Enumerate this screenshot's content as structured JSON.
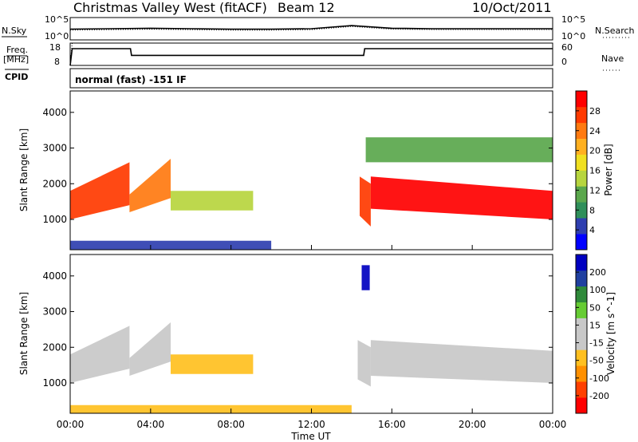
{
  "header": {
    "station_title": "Christmas Valley West (fitACF)",
    "beam_label": "Beam 12",
    "date_label": "10/Oct/2011"
  },
  "summary_panel": {
    "nsky_label": "N.Sky",
    "nsearch_label": "N.Search",
    "noise_tick_top": "10^5",
    "noise_tick_bottom": "10^0",
    "freq_label": "Freq.",
    "freq_unit": "[MHz]",
    "freq_tick_top": "18",
    "freq_tick_bottom": "8",
    "nave_label": "Nave",
    "nave_tick_top": "60",
    "nave_tick_bottom": "0",
    "cpid_label": "CPID",
    "cpid_value": "normal (fast) -151 IF"
  },
  "colors": {
    "power": [
      "#0000ff",
      "#2f3fb0",
      "#2f8f5a",
      "#5aa74c",
      "#b7d53e",
      "#f0e020",
      "#ffb020",
      "#ff7a10",
      "#ff3a00",
      "#ff0000"
    ],
    "velocity": [
      "#ff0000",
      "#ff4000",
      "#ff9000",
      "#ffc020",
      "#c8c8c8",
      "#c8c8c8",
      "#66cc33",
      "#2f8a3a",
      "#2040a0",
      "#0000c0"
    ],
    "ground_scatter": "#c8c8c8"
  },
  "chart_data": [
    {
      "type": "line",
      "panel": "noise",
      "x": [
        0,
        2,
        4,
        6,
        8,
        10,
        12,
        14,
        16,
        18,
        20,
        22,
        24
      ],
      "series": [
        {
          "name": "N.Sky",
          "values": [
            2.4,
            2.5,
            2.6,
            2.5,
            2.4,
            2.4,
            2.5,
            3.2,
            2.6,
            2.5,
            2.5,
            2.5,
            2.5
          ]
        },
        {
          "name": "N.Search",
          "values": [
            2.2,
            2.3,
            2.4,
            2.3,
            2.2,
            2.2,
            2.3,
            3.0,
            2.4,
            2.3,
            2.3,
            2.3,
            2.3
          ]
        }
      ],
      "ylim": [
        0,
        5
      ]
    },
    {
      "type": "line",
      "panel": "frequency",
      "x": [
        0,
        0.1,
        3.0,
        3.05,
        14.6,
        14.65,
        24
      ],
      "series": [
        {
          "name": "Freq.",
          "values": [
            8,
            15.5,
            15.5,
            12.5,
            12.5,
            15.5,
            15.5
          ]
        },
        {
          "name": "Nave",
          "values": [
            4,
            24,
            24,
            20,
            20,
            24,
            24
          ]
        }
      ],
      "ylim": [
        8,
        18
      ]
    },
    {
      "type": "heatmap",
      "panel": "power",
      "ylabel": "Slant Range [km]",
      "ylim": [
        150,
        4600
      ],
      "y_ticks": [
        "1000",
        "2000",
        "3000",
        "4000"
      ],
      "colorbar": {
        "label": "Power [dB]",
        "ticks": [
          "4",
          "8",
          "12",
          "16",
          "20",
          "24",
          "28"
        ],
        "range": [
          0,
          32
        ]
      },
      "regions": [
        {
          "t0": 0.0,
          "t1": 2.95,
          "r_low0": 1000,
          "r_low1": 1400,
          "r_high0": 1800,
          "r_high1": 2600,
          "value": 28
        },
        {
          "t0": 2.95,
          "t1": 5.0,
          "r_low0": 1200,
          "r_low1": 1600,
          "r_high0": 1700,
          "r_high1": 2700,
          "value": 24
        },
        {
          "t0": 5.0,
          "t1": 9.1,
          "r_low0": 1250,
          "r_low1": 1250,
          "r_high0": 1800,
          "r_high1": 1800,
          "value": 14
        },
        {
          "t0": 14.4,
          "t1": 14.95,
          "r_low0": 1100,
          "r_low1": 800,
          "r_high0": 2200,
          "r_high1": 2000,
          "value": 26
        },
        {
          "t0": 14.95,
          "t1": 24.0,
          "r_low0": 1300,
          "r_low1": 1000,
          "r_high0": 2200,
          "r_high1": 1800,
          "value": 30
        },
        {
          "t0": 0.0,
          "t1": 10.0,
          "r_low0": 150,
          "r_low1": 150,
          "r_high0": 400,
          "r_high1": 400,
          "value": 6
        },
        {
          "t0": 14.7,
          "t1": 24.0,
          "r_low0": 2600,
          "r_low1": 2600,
          "r_high0": 3300,
          "r_high1": 3300,
          "value": 10
        }
      ]
    },
    {
      "type": "heatmap",
      "panel": "velocity",
      "ylabel": "Slant Range [km]",
      "xlabel": "Time UT",
      "ylim": [
        150,
        4600
      ],
      "y_ticks": [
        "1000",
        "2000",
        "3000",
        "4000"
      ],
      "x_ticks": [
        "00:00",
        "04:00",
        "08:00",
        "12:00",
        "16:00",
        "20:00",
        "00:00"
      ],
      "xlim": [
        0,
        24
      ],
      "colorbar": {
        "label": "Velocity [m s^-1]",
        "ticks": [
          "-200",
          "-100",
          "-50",
          "-15",
          "15",
          "50",
          "100",
          "200"
        ],
        "range": [
          -250,
          250
        ]
      },
      "regions": [
        {
          "t0": 0.0,
          "t1": 2.95,
          "r_low0": 1000,
          "r_low1": 1400,
          "r_high0": 1800,
          "r_high1": 2600,
          "value": 0
        },
        {
          "t0": 2.95,
          "t1": 5.0,
          "r_low0": 1200,
          "r_low1": 1600,
          "r_high0": 1700,
          "r_high1": 2700,
          "value": 0
        },
        {
          "t0": 5.0,
          "t1": 9.1,
          "r_low0": 1250,
          "r_low1": 1250,
          "r_high0": 1800,
          "r_high1": 1800,
          "value": -60
        },
        {
          "t0": 14.3,
          "t1": 14.95,
          "r_low0": 1100,
          "r_low1": 900,
          "r_high0": 2200,
          "r_high1": 2000,
          "value": 40
        },
        {
          "t0": 14.95,
          "t1": 24.0,
          "r_low0": 1200,
          "r_low1": 1000,
          "r_high0": 2200,
          "r_high1": 1900,
          "value": 0
        },
        {
          "t0": 0.0,
          "t1": 14.0,
          "r_low0": 150,
          "r_low1": 150,
          "r_high0": 380,
          "r_high1": 380,
          "value": -60
        },
        {
          "t0": 14.5,
          "t1": 14.9,
          "r_low0": 3600,
          "r_low1": 3600,
          "r_high0": 4300,
          "r_high1": 4300,
          "value": 220
        }
      ]
    }
  ]
}
